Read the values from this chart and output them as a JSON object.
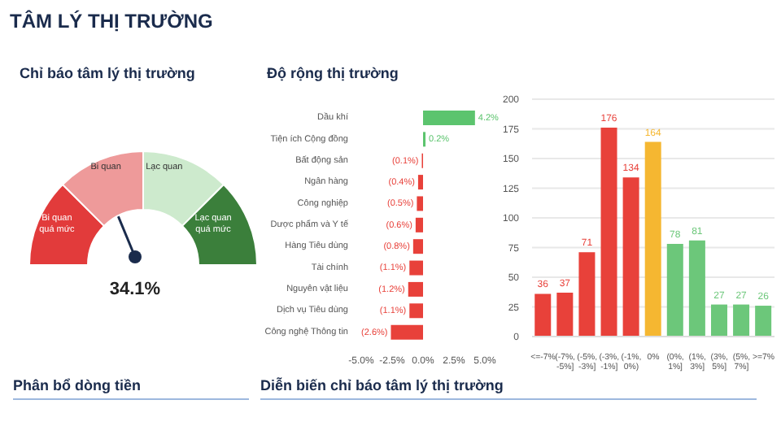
{
  "chart_data": [
    {
      "type": "other",
      "title": "TÂM LÝ THỊ TRƯỜNG"
    },
    {
      "type": "donut",
      "title": "Chỉ báo tâm lý thị trường",
      "categories": [
        "Bi quan quá mức",
        "Bi quan",
        "Lạc quan",
        "Lạc quan quá mức"
      ],
      "values": [
        25,
        25,
        25,
        25
      ],
      "colors": [
        "#e23b3b",
        "#ee9a9a",
        "#cdeacd",
        "#3b7f3b"
      ],
      "needle": "Bi quan",
      "annotations": [
        "34.1%"
      ]
    },
    {
      "type": "bar",
      "title": "Độ rộng thị trường",
      "orientation": "horizontal",
      "categories": [
        "Dầu khí",
        "Tiện ích Cộng đồng",
        "Bất động sản",
        "Ngân hàng",
        "Công nghiệp",
        "Dược phẩm và Y tế",
        "Hàng Tiêu dùng",
        "Tài chính",
        "Nguyên vật liệu",
        "Dịch vụ Tiêu dùng",
        "Công nghệ Thông tin"
      ],
      "values": [
        4.2,
        0.2,
        -0.1,
        -0.4,
        -0.5,
        -0.6,
        -0.8,
        -1.1,
        -1.2,
        -1.1,
        -2.6
      ],
      "colors": [
        "#5cc46e",
        "#5cc46e",
        "#e8413a",
        "#e8413a",
        "#e8413a",
        "#e8413a",
        "#e8413a",
        "#e8413a",
        "#e8413a",
        "#e8413a",
        "#e8413a"
      ],
      "value_labels": [
        "4.2%",
        "0.2%",
        "(0.1%)",
        "(0.4%)",
        "(0.5%)",
        "(0.6%)",
        "(0.8%)",
        "(1.1%)",
        "(1.2%)",
        "(1.1%)",
        "(2.6%)"
      ],
      "xlim": [
        -5,
        5
      ],
      "xticks": [
        {
          "value": -5,
          "label": "-5.0%"
        },
        {
          "value": -2.5,
          "label": "-2.5%"
        },
        {
          "value": 0,
          "label": "0.0%"
        },
        {
          "value": 2.5,
          "label": "2.5%"
        },
        {
          "value": 5,
          "label": "5.0%"
        }
      ]
    },
    {
      "type": "bar",
      "categories": [
        "<=-7%",
        "(-7%, -5%]",
        "(-5%, -3%]",
        "(-3%, -1%]",
        "(-1%, 0%)",
        "0%",
        "(0%, 1%]",
        "(1%, 3%]",
        "(3%, 5%]",
        "(5%, 7%]",
        ">=7%"
      ],
      "values": [
        36,
        37,
        71,
        176,
        134,
        164,
        78,
        81,
        27,
        27,
        26
      ],
      "colors": [
        "#e8413a",
        "#e8413a",
        "#e8413a",
        "#e8413a",
        "#e8413a",
        "#f5b731",
        "#6cc77a",
        "#6cc77a",
        "#6cc77a",
        "#6cc77a",
        "#6cc77a"
      ],
      "data_labels": true,
      "ylim": [
        0,
        200
      ],
      "yticks": [
        0,
        25,
        50,
        75,
        100,
        125,
        150,
        175,
        200
      ],
      "grid": "y"
    },
    {
      "type": "other",
      "title": "Phân bổ dòng tiền"
    },
    {
      "type": "other",
      "title": "Diễn biến chỉ báo tâm lý thị trường"
    }
  ]
}
